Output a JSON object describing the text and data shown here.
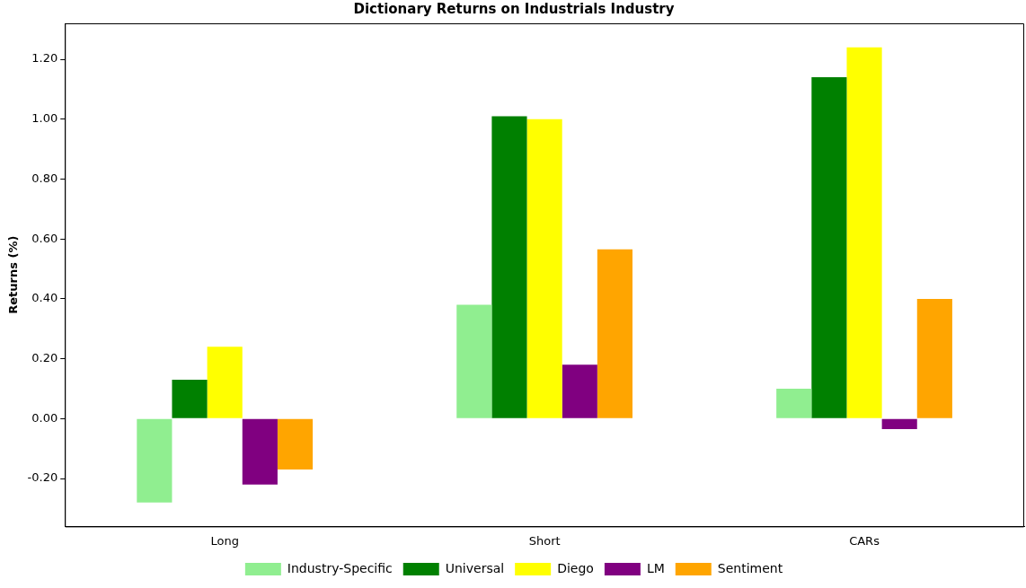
{
  "chart_data": {
    "type": "bar",
    "title": "Dictionary Returns on Industrials Industry",
    "ylabel": "Returns (%)",
    "categories": [
      "Long",
      "Short",
      "CARs"
    ],
    "series": [
      {
        "name": "Industry-Specific",
        "color": "#90ee90",
        "values": [
          -0.28,
          0.38,
          0.1
        ]
      },
      {
        "name": "Universal",
        "color": "#008000",
        "values": [
          0.13,
          1.01,
          1.14
        ]
      },
      {
        "name": "Diego",
        "color": "#ffff00",
        "values": [
          0.24,
          1.0,
          1.24
        ]
      },
      {
        "name": "LM",
        "color": "#800080",
        "values": [
          -0.22,
          0.18,
          -0.035
        ]
      },
      {
        "name": "Sentiment",
        "color": "#ffa500",
        "values": [
          -0.17,
          0.565,
          0.4
        ]
      }
    ],
    "ylim": [
      -0.36,
      1.32
    ],
    "yticks": [
      {
        "value": -0.2,
        "label": "-0.20"
      },
      {
        "value": 0,
        "label": "0.00"
      },
      {
        "value": 0.2,
        "label": "0.20"
      },
      {
        "value": 0.4,
        "label": "0.40"
      },
      {
        "value": 0.6,
        "label": "0.60"
      },
      {
        "value": 0.8,
        "label": "0.80"
      },
      {
        "value": 1.0,
        "label": "1.00"
      },
      {
        "value": 1.2,
        "label": "1.20"
      }
    ],
    "grid": false,
    "legend": "bottom"
  }
}
